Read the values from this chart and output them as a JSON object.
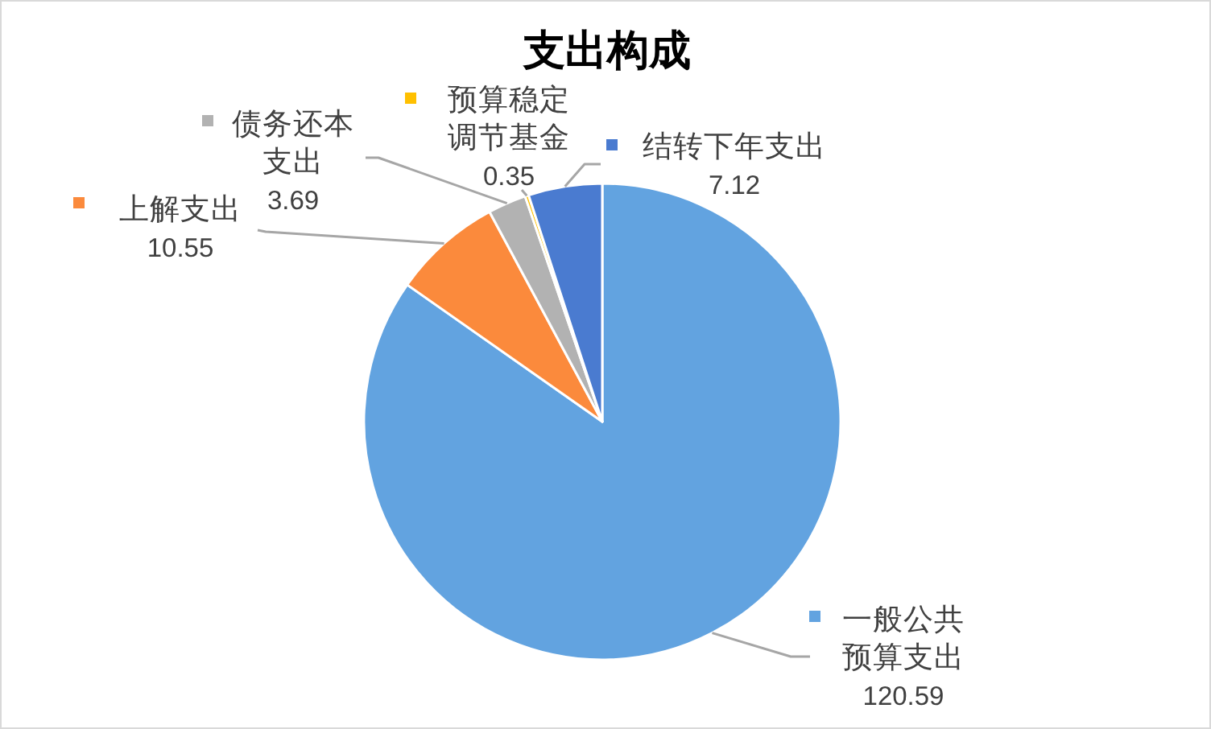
{
  "chart_data": {
    "type": "pie",
    "title": "支出构成",
    "categories": [
      "一般公共预算支出",
      "上解支出",
      "债务还本支出",
      "预算稳定调节基金",
      "结转下年支出"
    ],
    "values": [
      120.59,
      10.55,
      3.69,
      0.35,
      7.12
    ],
    "value_labels": [
      "120.59",
      "10.55",
      "3.69",
      "0.35",
      "7.12"
    ],
    "colors": [
      "#62a3e0",
      "#fb8a3c",
      "#b2b2b2",
      "#ffc000",
      "#4a7bd0"
    ],
    "legend": "left"
  }
}
